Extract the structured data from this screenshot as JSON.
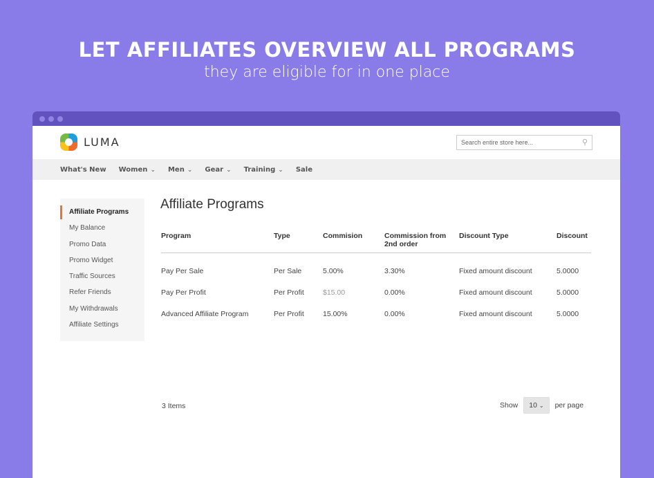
{
  "hero": {
    "title": "LET AFFILIATES OVERVIEW ALL PROGRAMS",
    "subtitle": "they are eligible for in one place"
  },
  "brand": {
    "name": "LUMA"
  },
  "search": {
    "placeholder": "Search entire store here...",
    "icon": "search-icon"
  },
  "nav": [
    {
      "label": "What's New",
      "dropdown": false
    },
    {
      "label": "Women",
      "dropdown": true
    },
    {
      "label": "Men",
      "dropdown": true
    },
    {
      "label": "Gear",
      "dropdown": true
    },
    {
      "label": "Training",
      "dropdown": true
    },
    {
      "label": "Sale",
      "dropdown": false
    }
  ],
  "sidebar": {
    "active": "Affiliate Programs",
    "items": [
      "Affiliate Programs",
      "My Balance",
      "Promo Data",
      "Promo Widget",
      "Traffic Sources",
      "Refer Friends",
      "My Withdrawals",
      "Affiliate Settings"
    ]
  },
  "page_title": "Affiliate Programs",
  "table": {
    "headers": [
      "Program",
      "Type",
      "Commision",
      "Commission from 2nd order",
      "Discount Type",
      "Discount"
    ],
    "rows": [
      [
        "Pay Per Sale",
        "Per Sale",
        "5.00%",
        "3.30%",
        "Fixed amount discount",
        "5.0000"
      ],
      [
        "Pay Per Profit",
        "Per Profit",
        "$15.00",
        "0.00%",
        "Fixed amount discount",
        "5.0000"
      ],
      [
        "Advanced Affiliate Program",
        "Per Profit",
        "15.00%",
        "0.00%",
        "Fixed amount discount",
        "5.0000"
      ]
    ]
  },
  "footer": {
    "items_count": "3 Items",
    "show_label": "Show",
    "per_page": "10",
    "per_page_label": "per page"
  },
  "colors": {
    "background": "#8a7ce8",
    "titlebar": "#6152c0",
    "accent": "#e8733a"
  }
}
